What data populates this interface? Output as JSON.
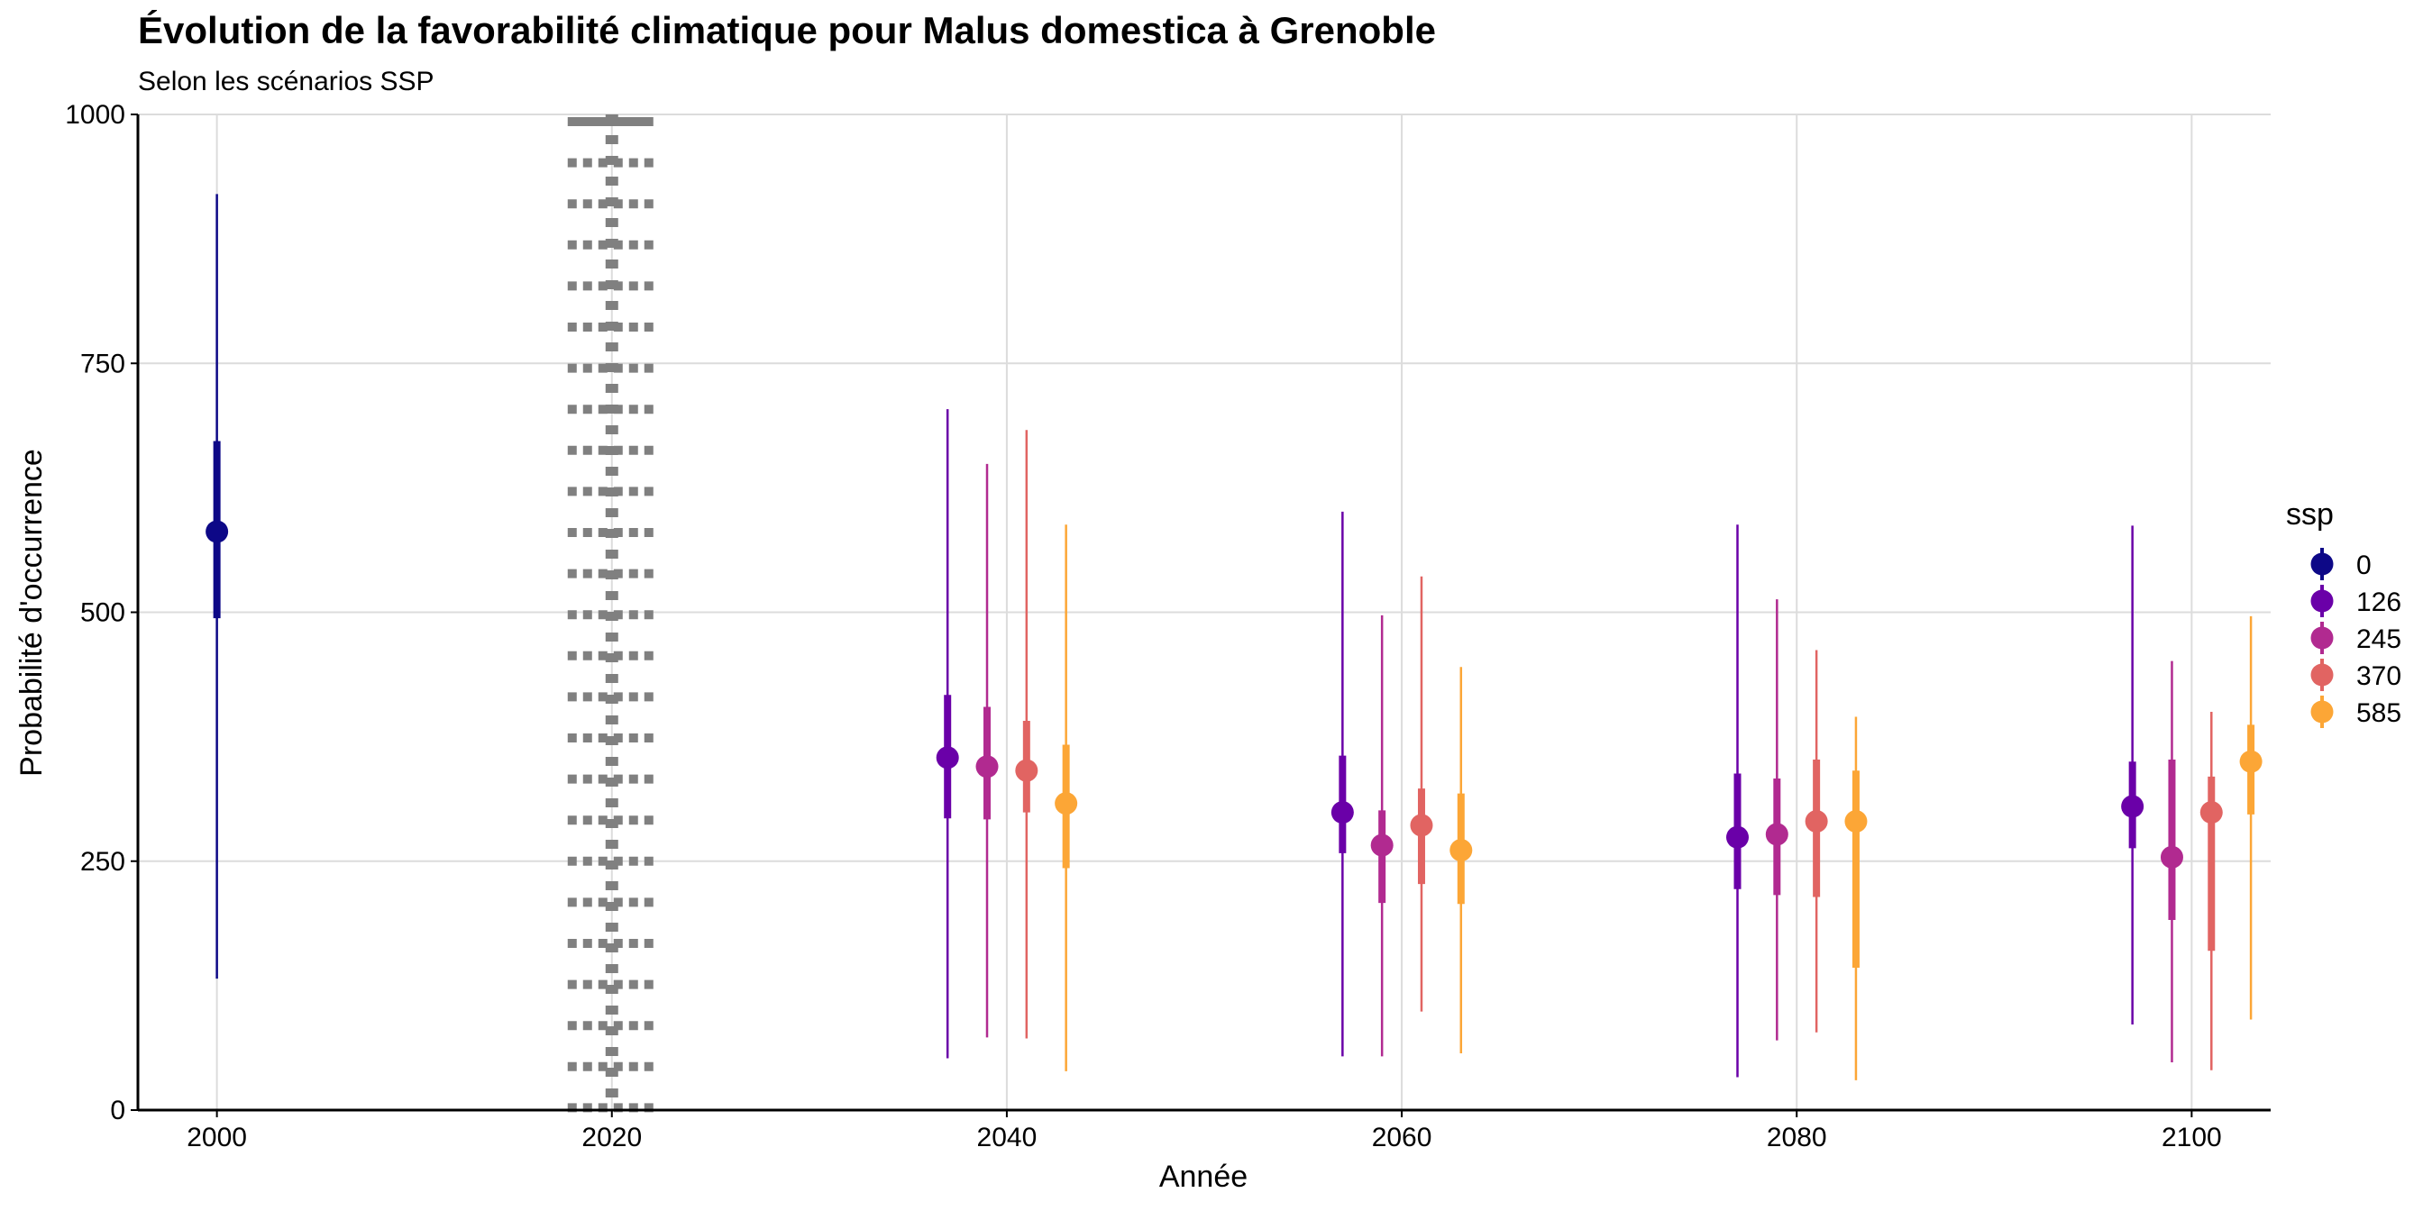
{
  "chart_data": {
    "type": "pointrange",
    "title": "Évolution de la favorabilité climatique pour Malus domestica à Grenoble",
    "subtitle": "Selon les scénarios SSP",
    "xlabel": "Année",
    "ylabel": "Probabilité d'occurrence",
    "xlim": [
      1996,
      2104
    ],
    "ylim": [
      0,
      1000
    ],
    "x_ticks": [
      "2000",
      "2020",
      "2040",
      "2060",
      "2080",
      "2100"
    ],
    "y_ticks": [
      "0",
      "250",
      "500",
      "750",
      "1000"
    ],
    "reference_line": {
      "x": 2020,
      "style": "dotted-thick"
    },
    "legend_title": "ssp",
    "series": [
      {
        "name": "0",
        "color": "#0d0887",
        "points": [
          {
            "x": 2000,
            "y": 581,
            "inner": [
              494,
              672
            ],
            "outer": [
              132,
              920
            ]
          }
        ]
      },
      {
        "name": "126",
        "color": "#6a00a8",
        "points": [
          {
            "x": 2037,
            "y": 354,
            "inner": [
              293,
              417
            ],
            "outer": [
              52,
              704
            ]
          },
          {
            "x": 2057,
            "y": 299,
            "inner": [
              258,
              356
            ],
            "outer": [
              54,
              601
            ]
          },
          {
            "x": 2077,
            "y": 274,
            "inner": [
              222,
              338
            ],
            "outer": [
              33,
              588
            ]
          },
          {
            "x": 2097,
            "y": 305,
            "inner": [
              263,
              350
            ],
            "outer": [
              86,
              587
            ]
          }
        ]
      },
      {
        "name": "245",
        "color": "#b12a90",
        "points": [
          {
            "x": 2039,
            "y": 345,
            "inner": [
              292,
              405
            ],
            "outer": [
              73,
              649
            ]
          },
          {
            "x": 2059,
            "y": 266,
            "inner": [
              208,
              301
            ],
            "outer": [
              54,
              497
            ]
          },
          {
            "x": 2079,
            "y": 277,
            "inner": [
              216,
              333
            ],
            "outer": [
              70,
              513
            ]
          },
          {
            "x": 2099,
            "y": 254,
            "inner": [
              191,
              352
            ],
            "outer": [
              48,
              451
            ]
          }
        ]
      },
      {
        "name": "370",
        "color": "#e16462",
        "points": [
          {
            "x": 2041,
            "y": 341,
            "inner": [
              299,
              391
            ],
            "outer": [
              72,
              683
            ]
          },
          {
            "x": 2061,
            "y": 286,
            "inner": [
              227,
              323
            ],
            "outer": [
              99,
              536
            ]
          },
          {
            "x": 2081,
            "y": 290,
            "inner": [
              214,
              352
            ],
            "outer": [
              78,
              462
            ]
          },
          {
            "x": 2101,
            "y": 299,
            "inner": [
              160,
              335
            ],
            "outer": [
              40,
              400
            ]
          }
        ]
      },
      {
        "name": "585",
        "color": "#fca636",
        "points": [
          {
            "x": 2043,
            "y": 308,
            "inner": [
              243,
              367
            ],
            "outer": [
              39,
              588
            ]
          },
          {
            "x": 2063,
            "y": 261,
            "inner": [
              207,
              318
            ],
            "outer": [
              57,
              445
            ]
          },
          {
            "x": 2083,
            "y": 290,
            "inner": [
              143,
              341
            ],
            "outer": [
              30,
              395
            ]
          },
          {
            "x": 2103,
            "y": 350,
            "inner": [
              297,
              387
            ],
            "outer": [
              91,
              496
            ]
          }
        ]
      }
    ]
  }
}
